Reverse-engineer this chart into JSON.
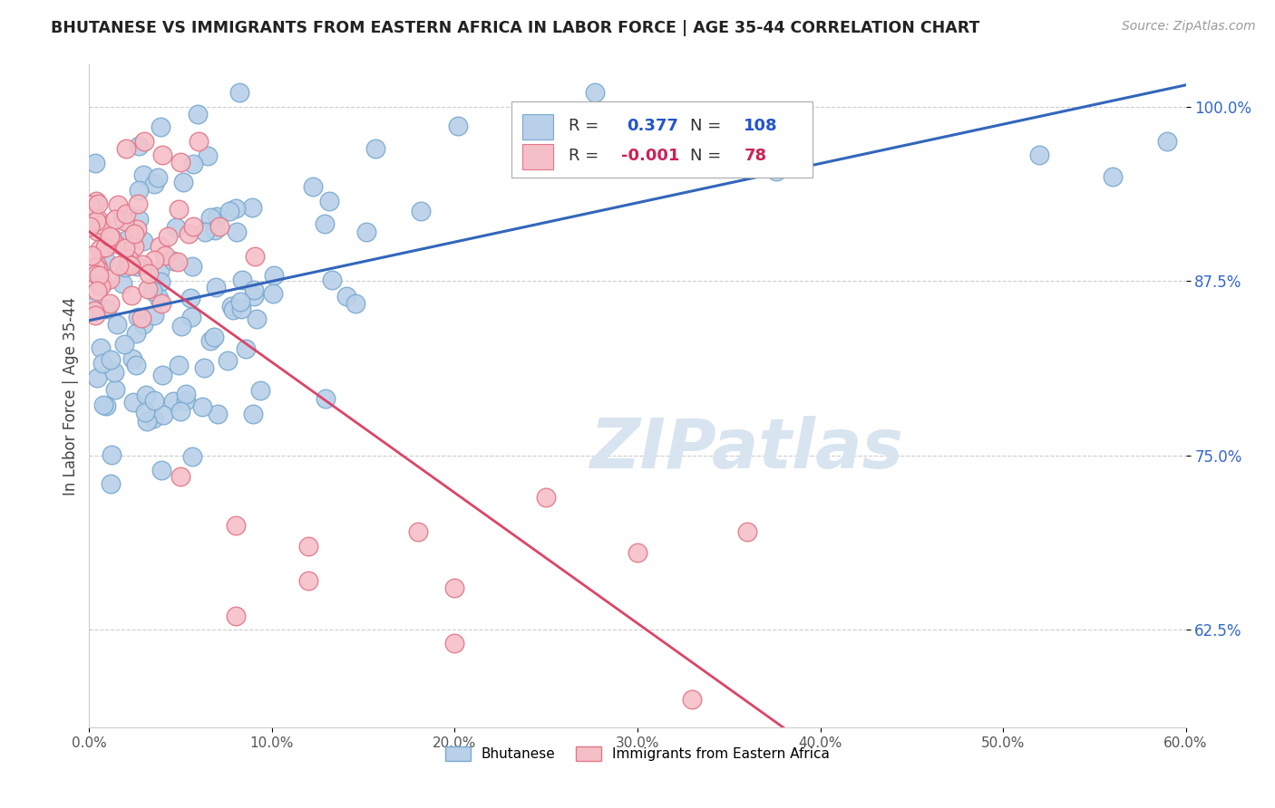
{
  "title": "BHUTANESE VS IMMIGRANTS FROM EASTERN AFRICA IN LABOR FORCE | AGE 35-44 CORRELATION CHART",
  "source_text": "Source: ZipAtlas.com",
  "ylabel": "In Labor Force | Age 35-44",
  "x_min": 0.0,
  "x_max": 0.6,
  "y_min": 0.555,
  "y_max": 1.03,
  "y_ticks": [
    0.625,
    0.75,
    0.875,
    1.0
  ],
  "y_tick_labels": [
    "62.5%",
    "75.0%",
    "87.5%",
    "100.0%"
  ],
  "x_ticks": [
    0.0,
    0.1,
    0.2,
    0.3,
    0.4,
    0.5,
    0.6
  ],
  "x_tick_labels": [
    "0.0%",
    "10.0%",
    "20.0%",
    "30.0%",
    "40.0%",
    "50.0%",
    "60.0%"
  ],
  "blue_R": 0.377,
  "blue_N": 108,
  "pink_R": -0.001,
  "pink_N": 78,
  "blue_color": "#b8d0e8",
  "blue_edge_color": "#7aaad0",
  "pink_color": "#f5bfc8",
  "pink_edge_color": "#e07888",
  "blue_line_color": "#3366bb",
  "pink_line_color": "#dd4466",
  "watermark_color": "#d8e4f0",
  "legend_R_color_blue": "#2255cc",
  "legend_R_color_pink": "#cc2255",
  "legend_N_color_blue": "#2255cc",
  "legend_N_color_pink": "#cc2255",
  "blue_scatter_seed": 123,
  "pink_scatter_seed": 456
}
